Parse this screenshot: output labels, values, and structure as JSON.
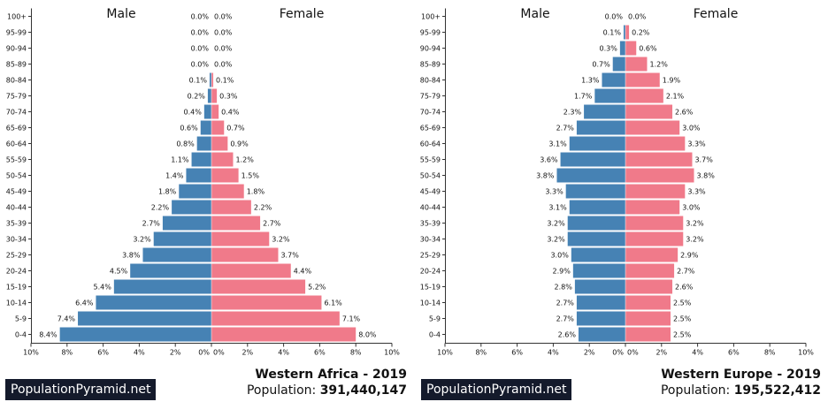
{
  "chart_data": [
    {
      "type": "bar",
      "orientation": "horizontal-pyramid",
      "region_label": "Western Africa - 2019",
      "population_label": "Population: ",
      "population_value": "391,440,147",
      "brand": "PopulationPyramid.net",
      "left_label": "Male",
      "right_label": "Female",
      "categories": [
        "100+",
        "95-99",
        "90-94",
        "85-89",
        "80-84",
        "75-79",
        "70-74",
        "65-69",
        "60-64",
        "55-59",
        "50-54",
        "45-49",
        "40-44",
        "35-39",
        "30-34",
        "25-29",
        "20-24",
        "15-19",
        "10-14",
        "5-9",
        "0-4"
      ],
      "series": [
        {
          "name": "Male",
          "values": [
            0.0,
            0.0,
            0.0,
            0.0,
            0.1,
            0.2,
            0.4,
            0.6,
            0.8,
            1.1,
            1.4,
            1.8,
            2.2,
            2.7,
            3.2,
            3.8,
            4.5,
            5.4,
            6.4,
            7.4,
            8.4
          ],
          "color": "#4682b4"
        },
        {
          "name": "Female",
          "values": [
            0.0,
            0.0,
            0.0,
            0.0,
            0.1,
            0.3,
            0.4,
            0.7,
            0.9,
            1.2,
            1.5,
            1.8,
            2.2,
            2.7,
            3.2,
            3.7,
            4.4,
            5.2,
            6.1,
            7.1,
            8.0
          ],
          "color": "#f07a8a"
        }
      ],
      "xlim": [
        0,
        10
      ],
      "xticks_left": [
        "10%",
        "8%",
        "6%",
        "4%",
        "2%",
        "0%"
      ],
      "xticks_right": [
        "0%",
        "2%",
        "4%",
        "6%",
        "8%",
        "10%"
      ]
    },
    {
      "type": "bar",
      "orientation": "horizontal-pyramid",
      "region_label": "Western Europe - 2019",
      "population_label": "Population: ",
      "population_value": "195,522,412",
      "brand": "PopulationPyramid.net",
      "left_label": "Male",
      "right_label": "Female",
      "categories": [
        "100+",
        "95-99",
        "90-94",
        "85-89",
        "80-84",
        "75-79",
        "70-74",
        "65-69",
        "60-64",
        "55-59",
        "50-54",
        "45-49",
        "40-44",
        "35-39",
        "30-34",
        "25-29",
        "20-24",
        "15-19",
        "10-14",
        "5-9",
        "0-4"
      ],
      "series": [
        {
          "name": "Male",
          "values": [
            0.0,
            0.1,
            0.3,
            0.7,
            1.3,
            1.7,
            2.3,
            2.7,
            3.1,
            3.6,
            3.8,
            3.3,
            3.1,
            3.2,
            3.2,
            3.0,
            2.9,
            2.8,
            2.7,
            2.7,
            2.6
          ],
          "color": "#4682b4"
        },
        {
          "name": "Female",
          "values": [
            0.0,
            0.2,
            0.6,
            1.2,
            1.9,
            2.1,
            2.6,
            3.0,
            3.3,
            3.7,
            3.8,
            3.3,
            3.0,
            3.2,
            3.2,
            2.9,
            2.7,
            2.6,
            2.5,
            2.5,
            2.5
          ],
          "color": "#f07a8a"
        }
      ],
      "xlim": [
        0,
        10
      ],
      "xticks_left": [
        "10%",
        "8%",
        "6%",
        "4%",
        "2%",
        "0%"
      ],
      "xticks_right": [
        "0%",
        "2%",
        "4%",
        "6%",
        "8%",
        "10%"
      ]
    }
  ]
}
